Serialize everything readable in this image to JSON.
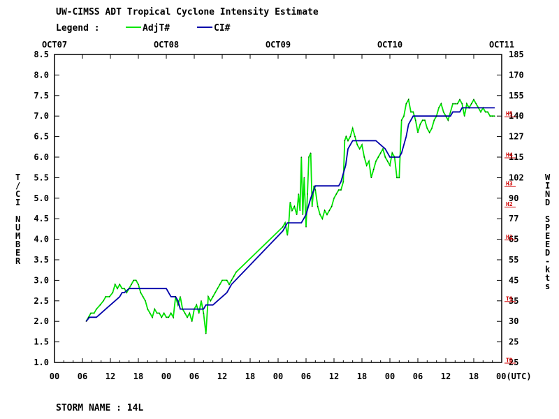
{
  "chart_data": {
    "type": "line",
    "title": "UW-CIMSS ADT Tropical Cyclone Intensity Estimate",
    "legend_label": "Legend :",
    "legend_position": "top",
    "storm_name": "STORM NAME : 14L",
    "top_date_labels": [
      "OCT07",
      "OCT08",
      "OCT09",
      "OCT10",
      "OCT11"
    ],
    "x_tick_labels": [
      "00",
      "06",
      "12",
      "18",
      "00",
      "06",
      "12",
      "18",
      "00",
      "06",
      "12",
      "18",
      "00",
      "06",
      "12",
      "18",
      "00(UTC)"
    ],
    "xlim_hours": [
      0,
      96
    ],
    "ylabel": "T/CI NUMBER",
    "ylim": [
      1.0,
      8.5
    ],
    "y_ticks": [
      "1.0",
      "1.5",
      "2.0",
      "2.5",
      "3.0",
      "3.5",
      "4.0",
      "4.5",
      "5.0",
      "5.5",
      "6.0",
      "6.5",
      "7.0",
      "7.5",
      "8.0",
      "8.5"
    ],
    "right_axis_label": "WIND SPEED-kts",
    "right_ticks": [
      {
        "ci": 1.0,
        "label": "25"
      },
      {
        "ci": 1.5,
        "label": "25"
      },
      {
        "ci": 2.0,
        "label": "30"
      },
      {
        "ci": 2.5,
        "label": "35"
      },
      {
        "ci": 3.0,
        "label": "45"
      },
      {
        "ci": 3.5,
        "label": "55"
      },
      {
        "ci": 4.0,
        "label": "65"
      },
      {
        "ci": 4.5,
        "label": "77"
      },
      {
        "ci": 5.0,
        "label": "90"
      },
      {
        "ci": 5.5,
        "label": "102"
      },
      {
        "ci": 6.0,
        "label": "115"
      },
      {
        "ci": 6.5,
        "label": "127"
      },
      {
        "ci": 7.0,
        "label": "140"
      },
      {
        "ci": 7.5,
        "label": "155"
      },
      {
        "ci": 8.0,
        "label": "170"
      },
      {
        "ci": 8.5,
        "label": "185"
      }
    ],
    "category_markers": [
      {
        "ci": 1.0,
        "label": "TD"
      },
      {
        "ci": 2.5,
        "label": "TS"
      },
      {
        "ci": 4.0,
        "label": "H1"
      },
      {
        "ci": 4.8,
        "label": "H2"
      },
      {
        "ci": 5.3,
        "label": "H3"
      },
      {
        "ci": 6.0,
        "label": "H4"
      },
      {
        "ci": 7.0,
        "label": "H5"
      }
    ],
    "colors": {
      "adjt": "#00e600",
      "ci": "#0000aa",
      "category": "#d00000",
      "axis": "#000000"
    },
    "series": [
      {
        "name": "AdjT#",
        "color": "#00e600",
        "points": [
          [
            6.8,
            2.0
          ],
          [
            7.3,
            2.1
          ],
          [
            7.8,
            2.2
          ],
          [
            8.5,
            2.2
          ],
          [
            9.0,
            2.3
          ],
          [
            9.8,
            2.4
          ],
          [
            10.5,
            2.5
          ],
          [
            11.0,
            2.6
          ],
          [
            11.8,
            2.6
          ],
          [
            12.5,
            2.7
          ],
          [
            13.0,
            2.9
          ],
          [
            13.5,
            2.8
          ],
          [
            14.0,
            2.9
          ],
          [
            14.5,
            2.8
          ],
          [
            15.0,
            2.8
          ],
          [
            15.5,
            2.7
          ],
          [
            16.0,
            2.8
          ],
          [
            16.5,
            2.9
          ],
          [
            17.0,
            3.0
          ],
          [
            17.5,
            3.0
          ],
          [
            18.0,
            2.9
          ],
          [
            18.5,
            2.7
          ],
          [
            19.0,
            2.6
          ],
          [
            19.5,
            2.5
          ],
          [
            20.0,
            2.3
          ],
          [
            20.5,
            2.2
          ],
          [
            21.0,
            2.1
          ],
          [
            21.5,
            2.3
          ],
          [
            22.0,
            2.2
          ],
          [
            22.5,
            2.2
          ],
          [
            23.0,
            2.1
          ],
          [
            23.5,
            2.2
          ],
          [
            24.0,
            2.1
          ],
          [
            24.5,
            2.1
          ],
          [
            25.0,
            2.2
          ],
          [
            25.5,
            2.1
          ],
          [
            26.0,
            2.6
          ],
          [
            26.5,
            2.4
          ],
          [
            27.0,
            2.6
          ],
          [
            27.5,
            2.3
          ],
          [
            28.0,
            2.2
          ],
          [
            28.5,
            2.1
          ],
          [
            29.0,
            2.2
          ],
          [
            29.5,
            2.0
          ],
          [
            30.0,
            2.3
          ],
          [
            30.5,
            2.4
          ],
          [
            31.0,
            2.2
          ],
          [
            31.5,
            2.5
          ],
          [
            32.0,
            2.2
          ],
          [
            32.5,
            1.7
          ],
          [
            33.0,
            2.6
          ],
          [
            33.5,
            2.5
          ],
          [
            34.0,
            2.6
          ],
          [
            34.5,
            2.7
          ],
          [
            35.0,
            2.8
          ],
          [
            35.5,
            2.9
          ],
          [
            36.0,
            3.0
          ],
          [
            37.0,
            3.0
          ],
          [
            37.5,
            2.9
          ],
          [
            38.0,
            3.0
          ],
          [
            38.5,
            3.1
          ],
          [
            39.0,
            3.2
          ],
          [
            49.0,
            4.3
          ],
          [
            49.5,
            4.4
          ],
          [
            50.0,
            4.1
          ],
          [
            50.3,
            4.4
          ],
          [
            50.6,
            4.9
          ],
          [
            51.0,
            4.7
          ],
          [
            51.5,
            4.8
          ],
          [
            52.0,
            4.6
          ],
          [
            52.4,
            5.1
          ],
          [
            52.7,
            4.7
          ],
          [
            53.0,
            6.0
          ],
          [
            53.3,
            4.6
          ],
          [
            53.6,
            5.5
          ],
          [
            54.0,
            4.3
          ],
          [
            54.3,
            5.1
          ],
          [
            54.6,
            6.0
          ],
          [
            55.0,
            6.1
          ],
          [
            55.3,
            4.8
          ],
          [
            55.7,
            5.3
          ],
          [
            56.0,
            5.2
          ],
          [
            56.5,
            4.8
          ],
          [
            57.0,
            4.6
          ],
          [
            57.5,
            4.5
          ],
          [
            58.0,
            4.7
          ],
          [
            58.5,
            4.6
          ],
          [
            59.0,
            4.7
          ],
          [
            59.5,
            4.8
          ],
          [
            60.0,
            5.0
          ],
          [
            60.5,
            5.1
          ],
          [
            61.0,
            5.2
          ],
          [
            61.5,
            5.2
          ],
          [
            62.0,
            5.4
          ],
          [
            62.3,
            6.4
          ],
          [
            62.6,
            6.5
          ],
          [
            63.0,
            6.4
          ],
          [
            63.5,
            6.5
          ],
          [
            64.0,
            6.7
          ],
          [
            64.5,
            6.5
          ],
          [
            65.0,
            6.3
          ],
          [
            65.5,
            6.2
          ],
          [
            66.0,
            6.3
          ],
          [
            66.5,
            6.0
          ],
          [
            67.0,
            5.8
          ],
          [
            67.5,
            5.9
          ],
          [
            68.0,
            5.5
          ],
          [
            68.5,
            5.7
          ],
          [
            69.0,
            5.9
          ],
          [
            69.5,
            6.0
          ],
          [
            70.0,
            6.1
          ],
          [
            70.5,
            6.2
          ],
          [
            71.0,
            6.0
          ],
          [
            71.5,
            5.9
          ],
          [
            72.0,
            5.8
          ],
          [
            72.5,
            6.1
          ],
          [
            73.0,
            6.0
          ],
          [
            73.5,
            5.5
          ],
          [
            74.0,
            5.5
          ],
          [
            74.5,
            6.9
          ],
          [
            75.0,
            7.0
          ],
          [
            75.5,
            7.3
          ],
          [
            76.0,
            7.4
          ],
          [
            76.5,
            7.1
          ],
          [
            77.0,
            7.1
          ],
          [
            77.5,
            6.9
          ],
          [
            78.0,
            6.6
          ],
          [
            78.5,
            6.8
          ],
          [
            79.0,
            6.9
          ],
          [
            79.5,
            6.9
          ],
          [
            80.0,
            6.7
          ],
          [
            80.5,
            6.6
          ],
          [
            81.0,
            6.7
          ],
          [
            81.5,
            6.9
          ],
          [
            82.0,
            7.0
          ],
          [
            82.5,
            7.2
          ],
          [
            83.0,
            7.3
          ],
          [
            83.5,
            7.1
          ],
          [
            84.0,
            7.0
          ],
          [
            84.5,
            6.9
          ],
          [
            85.0,
            7.1
          ],
          [
            85.5,
            7.3
          ],
          [
            86.0,
            7.3
          ],
          [
            86.5,
            7.3
          ],
          [
            87.0,
            7.4
          ],
          [
            87.5,
            7.3
          ],
          [
            88.0,
            7.0
          ],
          [
            88.5,
            7.3
          ],
          [
            89.0,
            7.2
          ],
          [
            89.5,
            7.3
          ],
          [
            90.0,
            7.4
          ],
          [
            90.5,
            7.3
          ],
          [
            91.0,
            7.2
          ],
          [
            91.5,
            7.1
          ],
          [
            92.0,
            7.2
          ],
          [
            92.5,
            7.1
          ],
          [
            93.0,
            7.1
          ],
          [
            93.5,
            7.0
          ],
          [
            94.0,
            7.0
          ],
          [
            94.5,
            7.0
          ]
        ]
      },
      {
        "name": "CI#",
        "color": "#0000aa",
        "points": [
          [
            6.8,
            2.0
          ],
          [
            7.5,
            2.1
          ],
          [
            9.0,
            2.1
          ],
          [
            10.0,
            2.2
          ],
          [
            11.0,
            2.3
          ],
          [
            12.0,
            2.4
          ],
          [
            13.0,
            2.5
          ],
          [
            14.0,
            2.6
          ],
          [
            14.5,
            2.7
          ],
          [
            15.0,
            2.7
          ],
          [
            16.0,
            2.8
          ],
          [
            23.0,
            2.8
          ],
          [
            24.0,
            2.8
          ],
          [
            24.5,
            2.7
          ],
          [
            25.0,
            2.6
          ],
          [
            26.0,
            2.6
          ],
          [
            26.5,
            2.5
          ],
          [
            27.0,
            2.3
          ],
          [
            32.0,
            2.3
          ],
          [
            32.5,
            2.4
          ],
          [
            33.0,
            2.4
          ],
          [
            34.0,
            2.4
          ],
          [
            35.0,
            2.5
          ],
          [
            36.0,
            2.6
          ],
          [
            37.0,
            2.7
          ],
          [
            38.0,
            2.9
          ],
          [
            49.0,
            4.2
          ],
          [
            49.5,
            4.3
          ],
          [
            50.0,
            4.4
          ],
          [
            53.0,
            4.4
          ],
          [
            54.0,
            4.6
          ],
          [
            55.0,
            5.0
          ],
          [
            56.0,
            5.3
          ],
          [
            61.0,
            5.3
          ],
          [
            61.5,
            5.4
          ],
          [
            62.0,
            5.6
          ],
          [
            62.5,
            5.8
          ],
          [
            63.0,
            6.2
          ],
          [
            63.5,
            6.3
          ],
          [
            64.0,
            6.4
          ],
          [
            69.0,
            6.4
          ],
          [
            70.0,
            6.3
          ],
          [
            71.0,
            6.2
          ],
          [
            72.0,
            6.0
          ],
          [
            74.0,
            6.0
          ],
          [
            74.5,
            6.1
          ],
          [
            75.0,
            6.3
          ],
          [
            75.5,
            6.5
          ],
          [
            76.0,
            6.8
          ],
          [
            77.0,
            7.0
          ],
          [
            85.0,
            7.0
          ],
          [
            85.5,
            7.1
          ],
          [
            87.0,
            7.1
          ],
          [
            87.5,
            7.2
          ],
          [
            94.5,
            7.2
          ]
        ]
      }
    ]
  }
}
